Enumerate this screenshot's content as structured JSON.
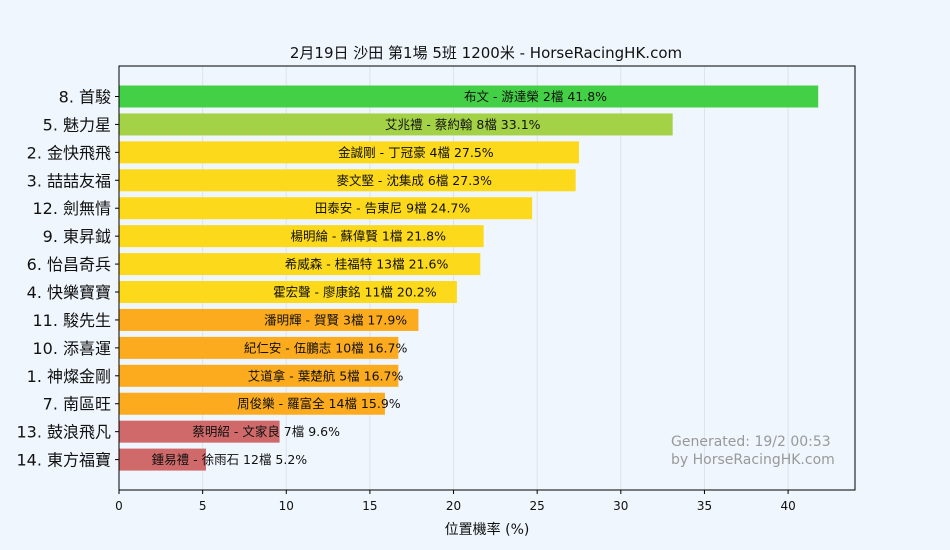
{
  "chart_data": {
    "type": "bar",
    "orientation": "horizontal",
    "title": "2月19日  沙田  第1場  5班  1200米 - HorseRacingHK.com",
    "xlabel": "位置機率 (%)",
    "ylabel": "",
    "xlim": [
      0,
      44
    ],
    "xticks": [
      0,
      5,
      10,
      15,
      20,
      25,
      30,
      35,
      40
    ],
    "grid": true,
    "categories": [
      "8. 首駿",
      "5. 魅力星",
      "2. 金快飛飛",
      "3. 喆喆友福",
      "12. 劍無情",
      "9. 東昇鉞",
      "6. 怡昌奇兵",
      "4. 快樂寶寶",
      "11. 駿先生",
      "10. 添喜運",
      "1. 神燦金剛",
      "7. 南區旺",
      "13. 鼓浪飛凡",
      "14. 東方福寶"
    ],
    "values": [
      41.8,
      33.1,
      27.5,
      27.3,
      24.7,
      21.8,
      21.6,
      20.2,
      17.9,
      16.7,
      16.7,
      15.9,
      9.6,
      5.2
    ],
    "bar_labels": [
      "布文 - 游達榮 2檔  41.8%",
      "艾兆禮 - 蔡約翰 8檔  33.1%",
      "金誠剛 - 丁冠豪 4檔  27.5%",
      "麥文堅 - 沈集成 6檔  27.3%",
      "田泰安 - 告東尼 9檔  24.7%",
      "楊明綸 - 蘇偉賢 1檔  21.8%",
      "希威森 - 桂福特 13檔  21.6%",
      "霍宏聲 - 廖康銘 11檔  20.2%",
      "潘明輝 - 賀賢 3檔  17.9%",
      "紀仁安 - 伍鵬志 10檔  16.7%",
      "艾道拿 - 葉楚航 5檔  16.7%",
      "周俊樂 - 羅富全 14檔  15.9%",
      "蔡明紹 - 文家良 7檔  9.6%",
      "鍾易禮 - 徐雨石 12檔  5.2%"
    ],
    "colors": [
      "#44d046",
      "#a4d246",
      "#fcd91a",
      "#fcd91a",
      "#fcd91a",
      "#fcd91a",
      "#fcd91a",
      "#fcd91a",
      "#fcab1f",
      "#fcab1f",
      "#fcab1f",
      "#fcab1f",
      "#d06a6a",
      "#d06a6a"
    ],
    "annotations": [
      "Generated: 19/2 00:53",
      "by HorseRacingHK.com"
    ]
  }
}
